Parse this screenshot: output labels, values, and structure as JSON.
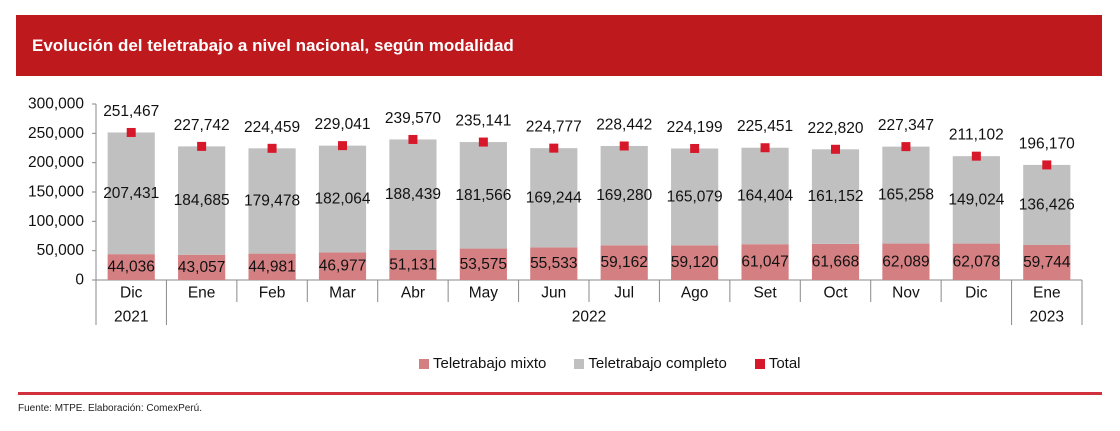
{
  "header": {
    "title": "Evolución del teletrabajo a nivel nacional, según modalidad"
  },
  "footer": {
    "source": "Fuente: MTPE. Elaboración: ComexPerú."
  },
  "colors": {
    "brand_red": "#BE1A1E",
    "rule_red": "#D0313D",
    "axis": "#898989"
  },
  "chart_data": {
    "type": "bar",
    "stacked": true,
    "title": "Evolución del teletrabajo a nivel nacional, según modalidad",
    "xlabel": "",
    "ylabel": "",
    "categories": [
      "Dic",
      "Ene",
      "Feb",
      "Mar",
      "Abr",
      "May",
      "Jun",
      "Jul",
      "Ago",
      "Set",
      "Oct",
      "Nov",
      "Dic",
      "Ene"
    ],
    "year_groups": [
      {
        "label": "2021",
        "start": 0,
        "end": 0
      },
      {
        "label": "2022",
        "start": 1,
        "end": 12
      },
      {
        "label": "2023",
        "start": 13,
        "end": 13
      }
    ],
    "ylim": [
      0,
      300000
    ],
    "yticks": [
      0,
      50000,
      100000,
      150000,
      200000,
      250000,
      300000
    ],
    "ytick_labels": [
      "0",
      "50,000",
      "100,000",
      "150,000",
      "200,000",
      "250,000",
      "300,000"
    ],
    "grid": false,
    "legend_position": "bottom",
    "series": [
      {
        "name": "Teletrabajo mixto",
        "kind": "bar",
        "color": "#D48083",
        "values": [
          44036,
          43057,
          44981,
          46977,
          51131,
          53575,
          55533,
          59162,
          59120,
          61047,
          61668,
          62089,
          62078,
          59744
        ],
        "labels": [
          "44,036",
          "43,057",
          "44,981",
          "46,977",
          "51,131",
          "53,575",
          "55,533",
          "59,162",
          "59,120",
          "61,047",
          "61,668",
          "62,089",
          "62,078",
          "59,744"
        ]
      },
      {
        "name": "Teletrabajo completo",
        "kind": "bar",
        "color": "#C0C0C0",
        "values": [
          207431,
          184685,
          179478,
          182064,
          188439,
          181566,
          169244,
          169280,
          165079,
          164404,
          161152,
          165258,
          149024,
          136426
        ],
        "labels": [
          "207,431",
          "184,685",
          "179,478",
          "182,064",
          "188,439",
          "181,566",
          "169,244",
          "169,280",
          "165,079",
          "164,404",
          "161,152",
          "165,258",
          "149,024",
          "136,426"
        ]
      },
      {
        "name": "Total",
        "kind": "marker",
        "color": "#D7182A",
        "values": [
          251467,
          227742,
          224459,
          229041,
          239570,
          235141,
          224777,
          228442,
          224199,
          225451,
          222820,
          227347,
          211102,
          196170
        ],
        "labels": [
          "251,467",
          "227,742",
          "224,459",
          "229,041",
          "239,570",
          "235,141",
          "224,777",
          "228,442",
          "224,199",
          "225,451",
          "222,820",
          "227,347",
          "211,102",
          "196,170"
        ]
      }
    ]
  }
}
